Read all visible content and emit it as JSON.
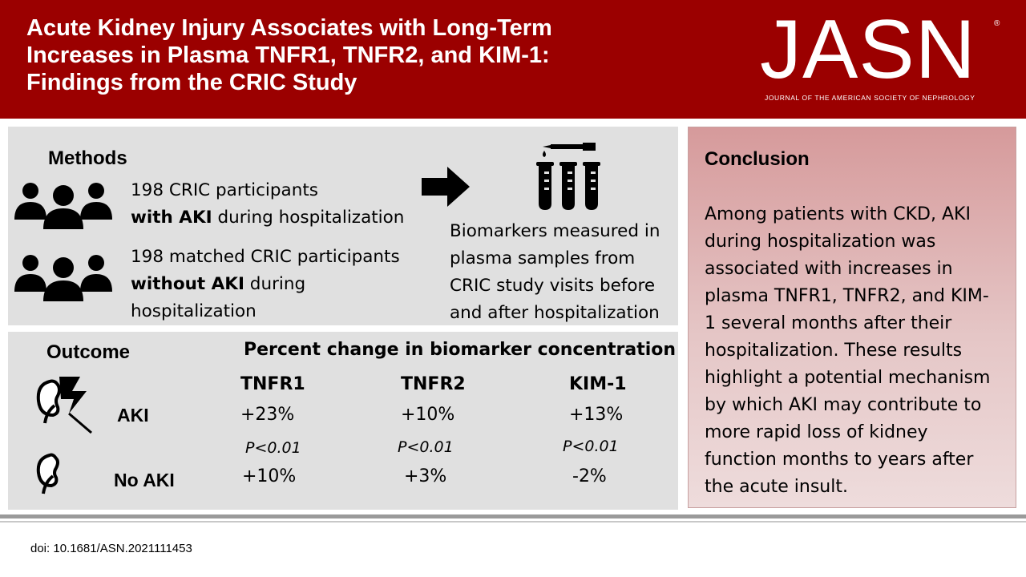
{
  "header": {
    "title_lines": [
      "Acute Kidney Injury Associates with Long-Term",
      "Increases in Plasma TNFR1, TNFR2, and KIM-1:",
      "Findings from the CRIC Study"
    ],
    "logo": {
      "word": "JASN",
      "registered": "®",
      "subtitle": "JOURNAL OF THE AMERICAN SOCIETY OF NEPHROLOGY"
    },
    "colors": {
      "header_bg": "#9b0000",
      "panel_bg": "#e0e0e0"
    }
  },
  "methods": {
    "heading": "Methods",
    "group1": {
      "line1": "198 CRIC participants",
      "bold": "with AKI",
      "rest": " during hospitalization"
    },
    "group2": {
      "line1": "198 matched CRIC participants",
      "bold": "without AKI",
      "rest": " during",
      "line3": "hospitalization"
    },
    "biomarkers_lines": [
      "Biomarkers measured in",
      "plasma samples from",
      "CRIC study visits before",
      "and after hospitalization"
    ],
    "icons": [
      "people-group-icon",
      "arrow-right-icon",
      "test-tubes-icon"
    ]
  },
  "outcome": {
    "heading": "Outcome",
    "table_title": "Percent change in biomarker concentration",
    "columns": [
      "TNFR1",
      "TNFR2",
      "KIM-1"
    ],
    "rows": [
      {
        "label": "AKI",
        "values": [
          "+23%",
          "+10%",
          "+13%"
        ]
      },
      {
        "label": "No AKI",
        "values": [
          "+10%",
          "+3%",
          "-2%"
        ]
      }
    ],
    "p_values": [
      "P<0.01",
      "P<0.01",
      "P<0.01"
    ]
  },
  "conclusion": {
    "heading": "Conclusion",
    "lines": [
      "Among patients with CKD, AKI",
      "during hospitalization was",
      "associated with increases in",
      "plasma TNFR1, TNFR2, and KIM-",
      "1 several months after their",
      "hospitalization. These results",
      "highlight a potential mechanism",
      "by which AKI may contribute to",
      "more rapid loss of kidney",
      "function months to years after",
      "the acute insult."
    ]
  },
  "footer": {
    "doi": "doi: 10.1681/ASN.2021111453"
  }
}
